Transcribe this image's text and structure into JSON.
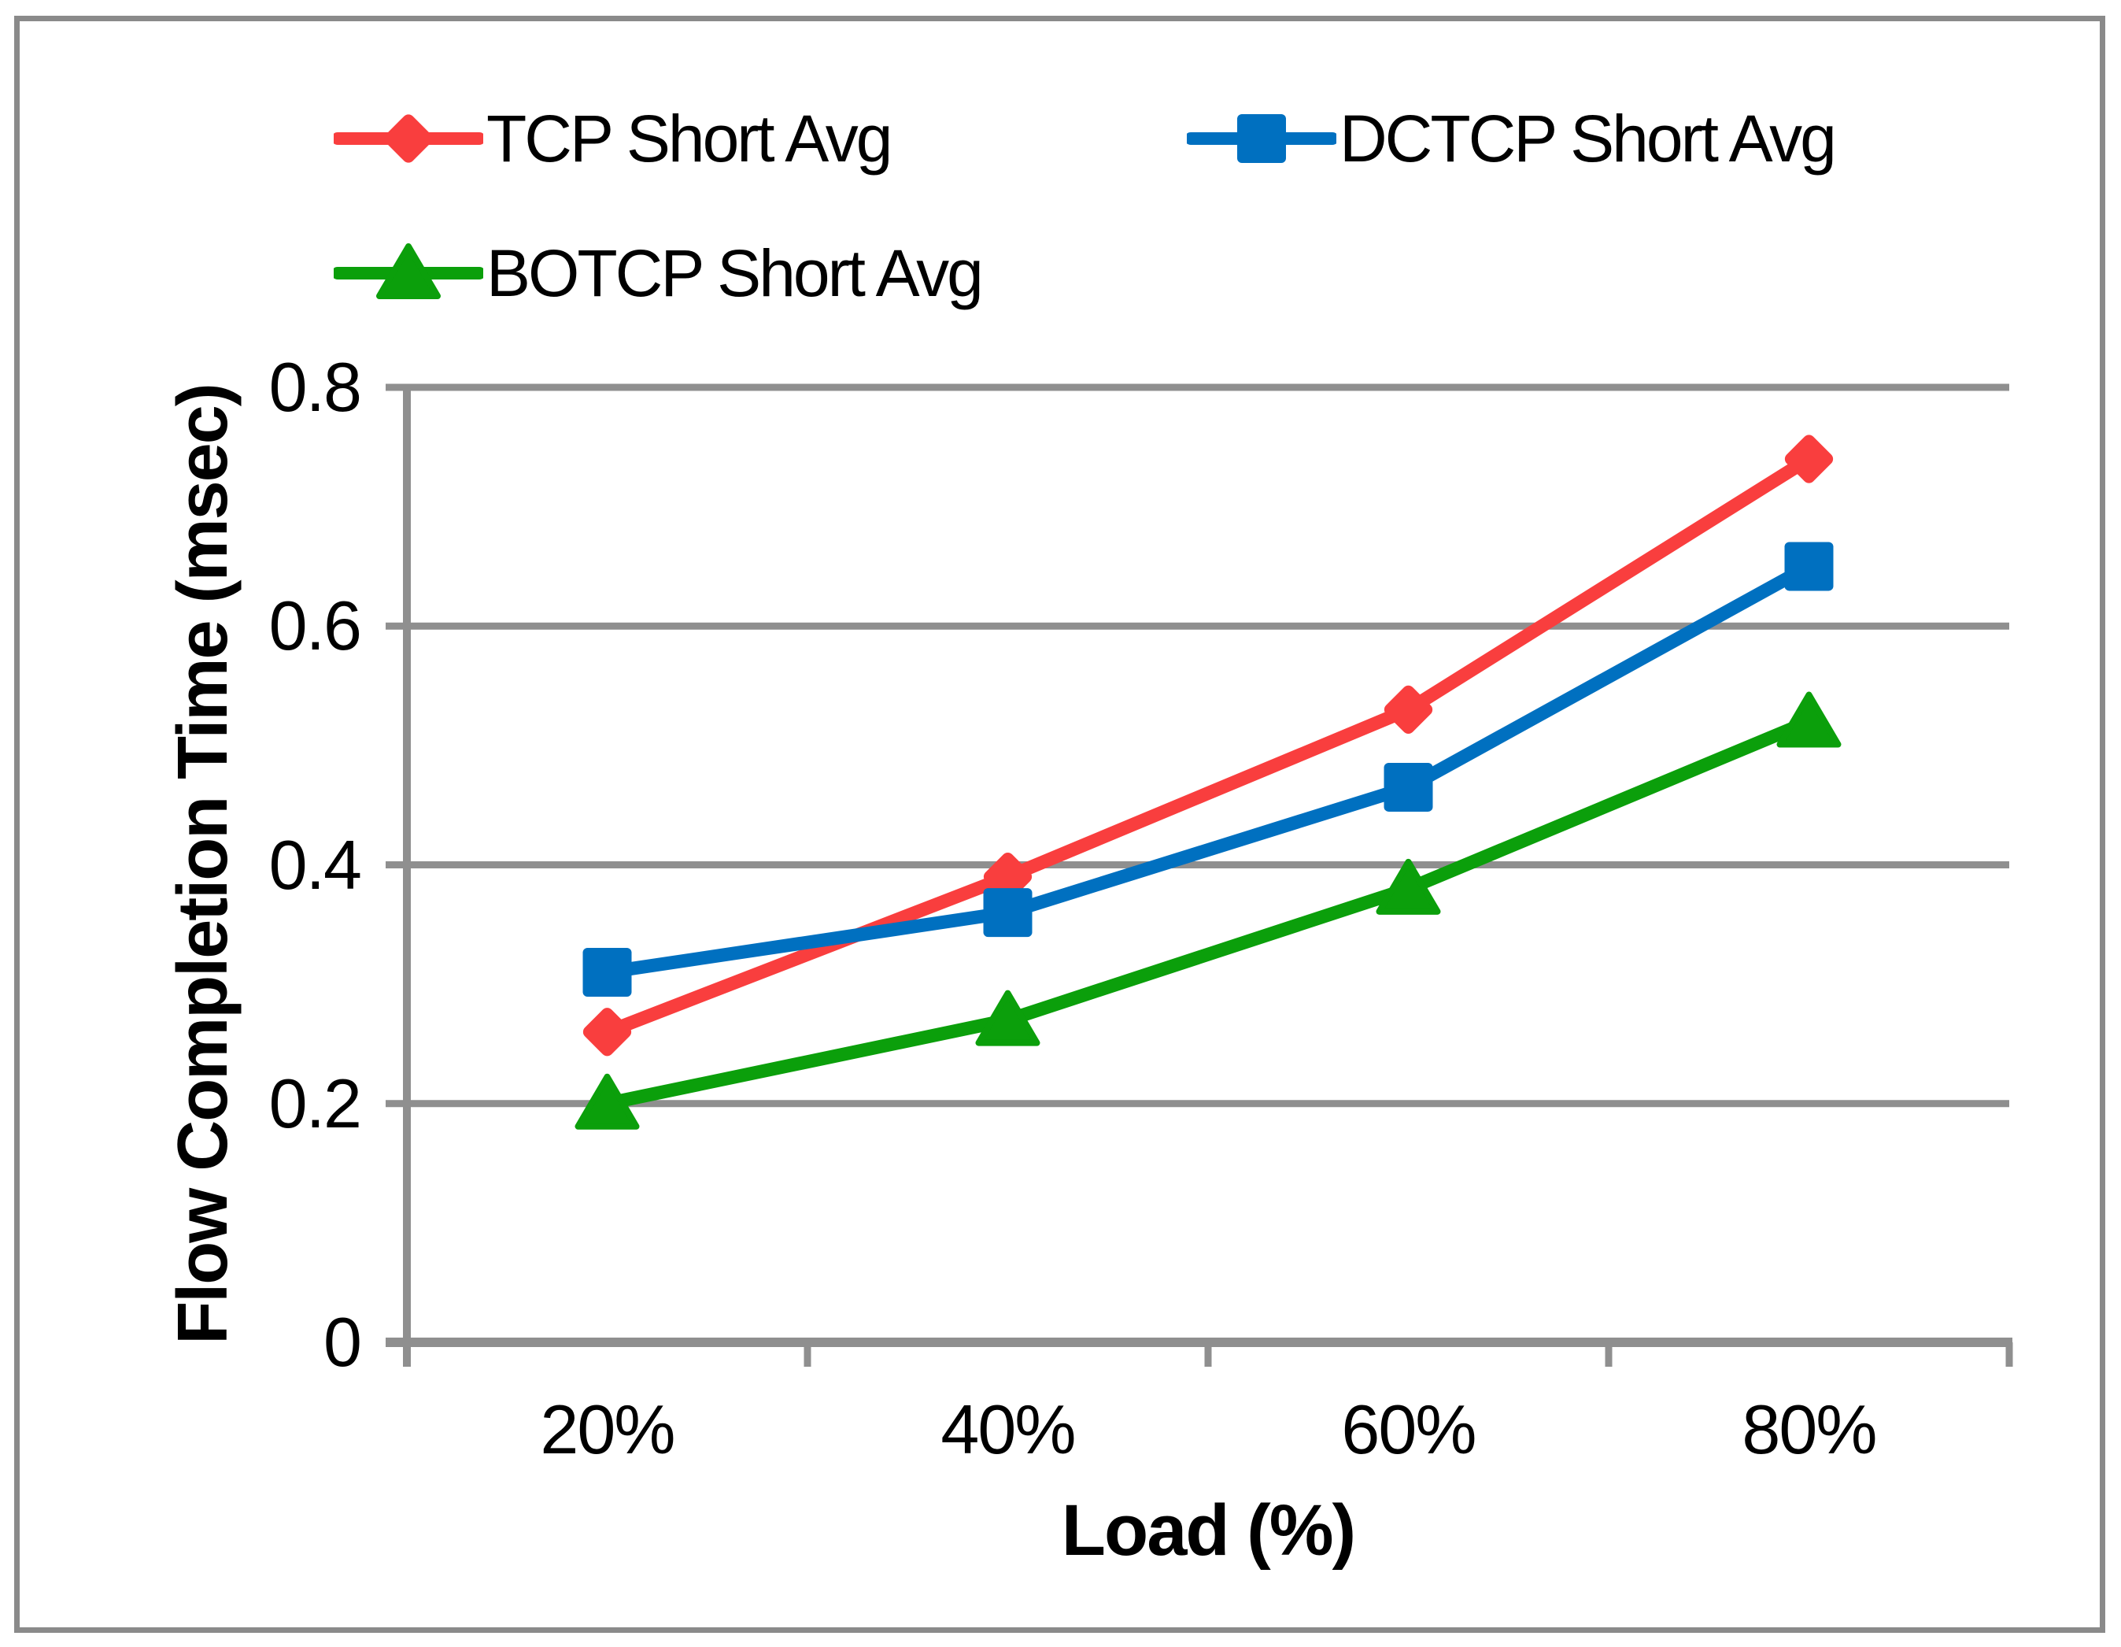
{
  "figure": {
    "background_color": "#FFFFFF",
    "border_color": "#8A8A8A"
  },
  "chart_data": {
    "type": "line",
    "title": "",
    "xlabel": "Load (%)",
    "ylabel": "Flow Completion Time (msec)",
    "categories": [
      "20%",
      "40%",
      "60%",
      "80%"
    ],
    "series": [
      {
        "name": "TCP Short Avg",
        "color": "#F93E3E",
        "marker": "diamond",
        "values": [
          0.26,
          0.39,
          0.53,
          0.74
        ]
      },
      {
        "name": "DCTCP Short Avg",
        "color": "#0070C0",
        "marker": "square",
        "values": [
          0.31,
          0.36,
          0.465,
          0.65
        ]
      },
      {
        "name": "BOTCP Short Avg",
        "color": "#0B9F0B",
        "marker": "triangle",
        "values": [
          0.2,
          0.27,
          0.38,
          0.52
        ]
      }
    ],
    "ylim": [
      0,
      0.8
    ],
    "yticks": [
      {
        "label": "0",
        "value": 0.0
      },
      {
        "label": "0.2",
        "value": 0.2
      },
      {
        "label": "0.4",
        "value": 0.4
      },
      {
        "label": "0.6",
        "value": 0.6
      },
      {
        "label": "0.8",
        "value": 0.8
      }
    ],
    "grid": "horizontal",
    "legend_position": "top-left, two rows",
    "axis_color": "#8F8F8F",
    "text_color": "#000000"
  }
}
